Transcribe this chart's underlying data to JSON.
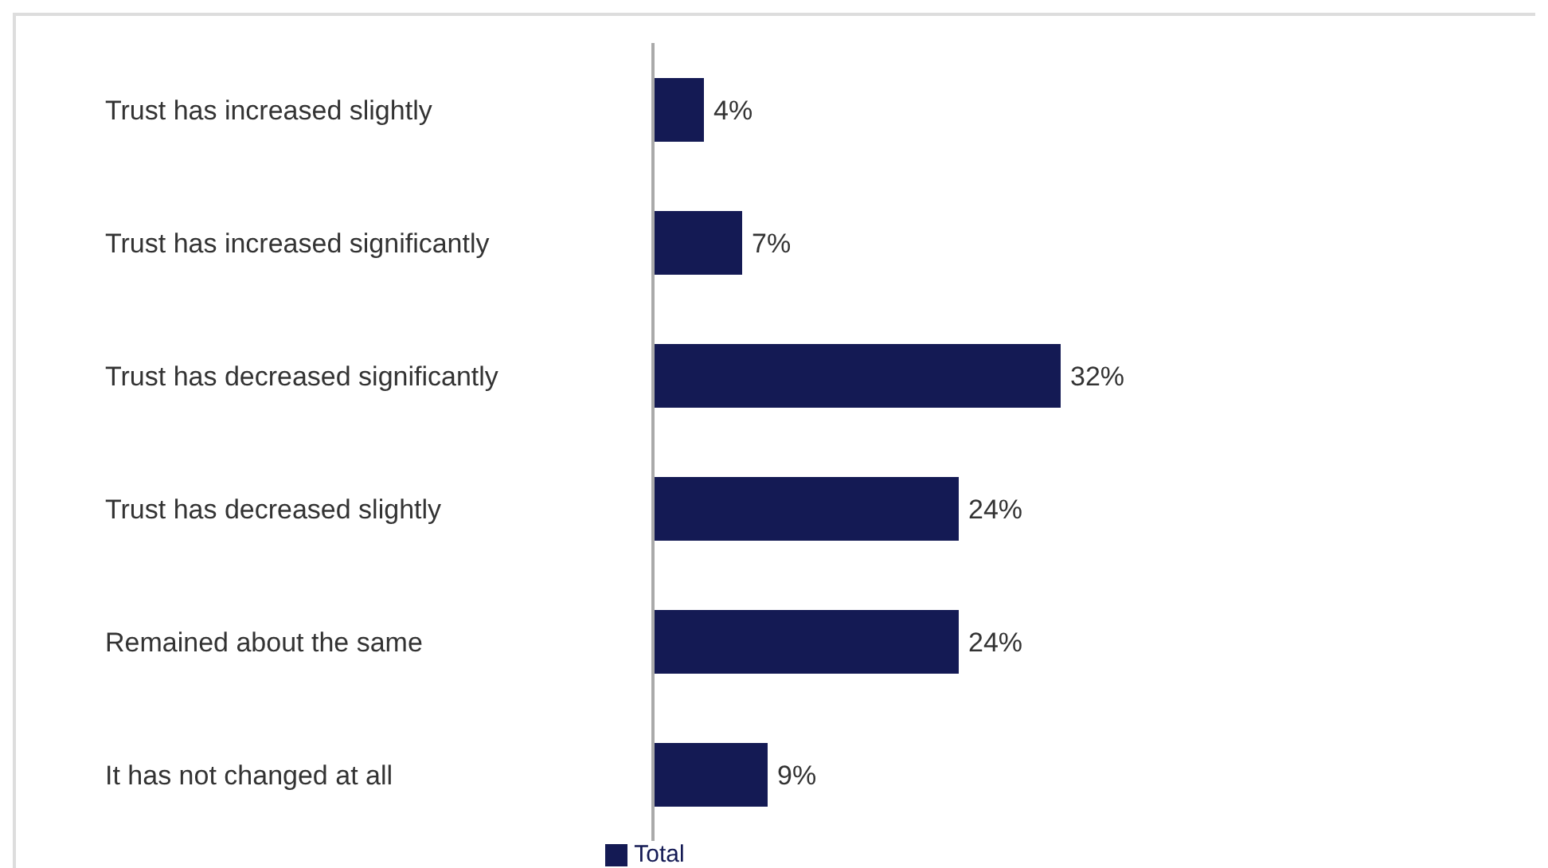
{
  "chart_data": {
    "type": "bar",
    "orientation": "horizontal",
    "categories": [
      "Trust has increased slightly",
      "Trust has increased significantly",
      "Trust has decreased significantly",
      "Trust has decreased slightly",
      "Remained about the same",
      "It has not changed at all"
    ],
    "series": [
      {
        "name": "Total",
        "color": "#141a54",
        "values": [
          4,
          7,
          32,
          24,
          24,
          9
        ],
        "value_labels": [
          "4%",
          "7%",
          "32%",
          "24%",
          "24%",
          "9%"
        ]
      }
    ],
    "legend": "bottom",
    "grid": false
  }
}
